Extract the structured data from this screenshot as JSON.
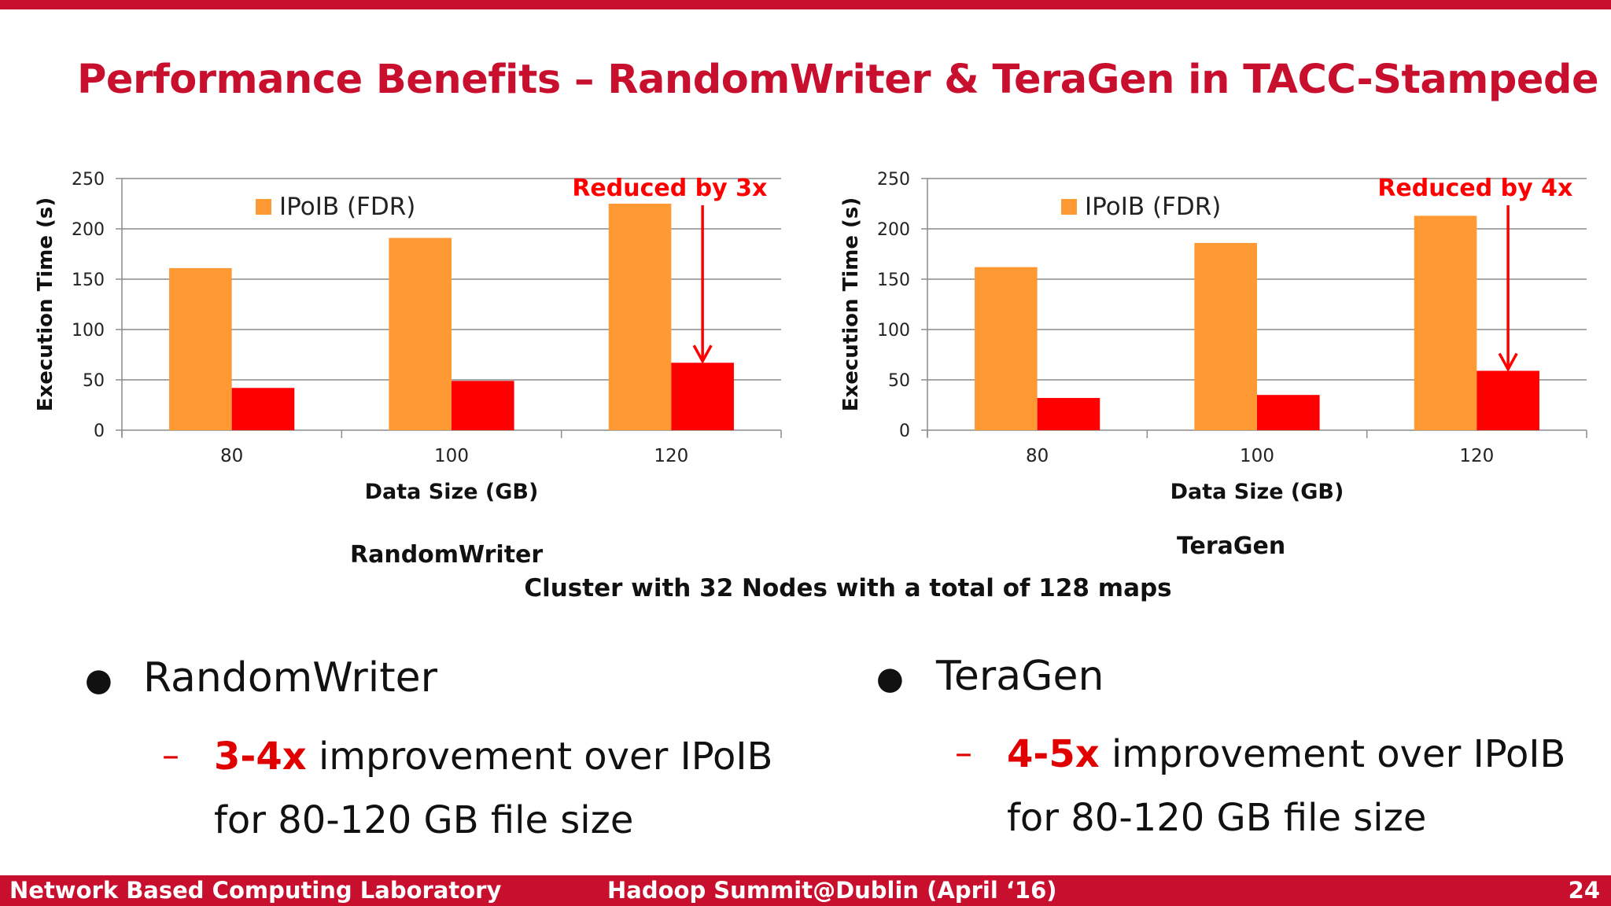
{
  "slide": {
    "title": "Performance Benefits – RandomWriter & TeraGen in TACC-Stampede",
    "cluster_note": "Cluster with 32 Nodes with a total of 128 maps"
  },
  "colors": {
    "accent": "#c8102e",
    "ipoib": "#ff9933",
    "rdma": "#ff0000",
    "grid": "#8c8c8c"
  },
  "bullets": [
    {
      "heading": "RandomWriter",
      "highlight": "3-4x",
      "line1_rest": " improvement over IPoIB",
      "line2": "for 80-120 GB file size"
    },
    {
      "heading": "TeraGen",
      "highlight": "4-5x",
      "line1_rest": " improvement over IPoIB",
      "line2": "for 80-120 GB file size"
    }
  ],
  "footer": {
    "left": "Network Based Computing Laboratory",
    "center": "Hadoop Summit@Dublin (April ‘16)",
    "page": "24"
  },
  "chart_data": [
    {
      "type": "bar",
      "caption": "RandomWriter",
      "categories": [
        "80",
        "100",
        "120"
      ],
      "series": [
        {
          "name": "IPoIB (FDR)",
          "color": "#ff9933",
          "values": [
            161,
            191,
            225
          ]
        },
        {
          "color": "#ff0000",
          "values": [
            42,
            49,
            67
          ]
        }
      ],
      "xlabel": "Data Size (GB)",
      "ylabel": "Execution Time (s)",
      "ylim": [
        0,
        250
      ],
      "yticks": [
        0,
        50,
        100,
        150,
        200,
        250
      ],
      "grid": true,
      "legend": "top-left",
      "annotation": {
        "text": "Reduced by 3x",
        "category": "120"
      }
    },
    {
      "type": "bar",
      "caption": "TeraGen",
      "categories": [
        "80",
        "100",
        "120"
      ],
      "series": [
        {
          "name": "IPoIB (FDR)",
          "color": "#ff9933",
          "values": [
            162,
            186,
            213
          ]
        },
        {
          "color": "#ff0000",
          "values": [
            32,
            35,
            59
          ]
        }
      ],
      "xlabel": "Data Size (GB)",
      "ylabel": "Execution Time (s)",
      "ylim": [
        0,
        250
      ],
      "yticks": [
        0,
        50,
        100,
        150,
        200,
        250
      ],
      "grid": true,
      "legend": "top-left",
      "annotation": {
        "text": "Reduced by 4x",
        "category": "120"
      }
    }
  ]
}
